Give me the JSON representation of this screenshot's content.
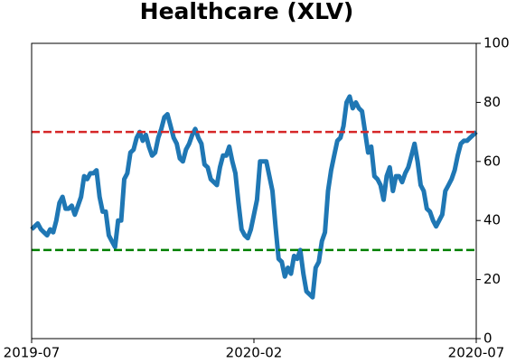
{
  "chart_data": {
    "type": "line",
    "title": "Healthcare (XLV)",
    "xlim": [
      "2019-07",
      "2020-07"
    ],
    "xticks": [
      "2019-07",
      "2020-02",
      "2020-07"
    ],
    "ylim": [
      0,
      100
    ],
    "yticks": [
      0,
      20,
      40,
      60,
      80,
      100
    ],
    "yaxis_side": "right",
    "reference_lines": [
      {
        "value": 70,
        "color": "#d62728"
      },
      {
        "value": 30,
        "color": "#008000"
      }
    ],
    "series": [
      {
        "color": "#1f77b4",
        "values": [
          37,
          38,
          39,
          37,
          36,
          35,
          37,
          36,
          40,
          46,
          48,
          44,
          44,
          45,
          42,
          45,
          48,
          55,
          54,
          56,
          56,
          57,
          48,
          43,
          43,
          35,
          33,
          31,
          40,
          40,
          54,
          56,
          63,
          64,
          68,
          70,
          67,
          69,
          65,
          62,
          63,
          68,
          71,
          75,
          76,
          72,
          68,
          66,
          61,
          60,
          64,
          66,
          69,
          71,
          68,
          66,
          59,
          58,
          54,
          53,
          52,
          58,
          62,
          62,
          65,
          60,
          56,
          46,
          37,
          35,
          34,
          37,
          42,
          47,
          60,
          60,
          60,
          55,
          50,
          38,
          27,
          26,
          21,
          24,
          22,
          28,
          27,
          30,
          22,
          16,
          15,
          14,
          24,
          26,
          33,
          36,
          50,
          57,
          62,
          67,
          68,
          72,
          80,
          82,
          78,
          80,
          78,
          77,
          70,
          63,
          65,
          55,
          54,
          52,
          47,
          55,
          58,
          50,
          55,
          55,
          53,
          56,
          58,
          62,
          66,
          60,
          52,
          50,
          44,
          43,
          40,
          38,
          40,
          42,
          50,
          52,
          54,
          57,
          62,
          66,
          67,
          67,
          68,
          69,
          70
        ]
      }
    ]
  }
}
